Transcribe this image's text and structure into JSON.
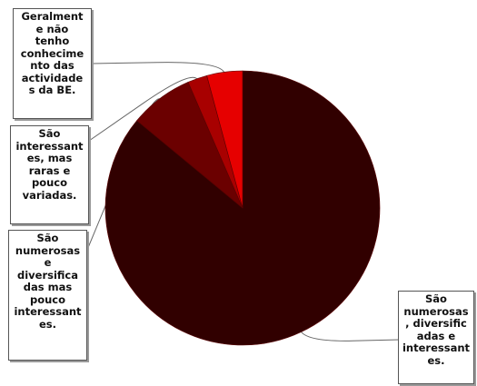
{
  "chart_data": {
    "type": "pie",
    "title": "",
    "slices": [
      {
        "label": "São numerosas, diversificadas e interessantes.",
        "display": "São\nnumerosas\n, diversific\nadas e\ninteressant\nes.",
        "value": 86,
        "color": "#310000"
      },
      {
        "label": "São numerosas e diversificadas mas pouco interessantes.",
        "display": "São\nnumerosas\ne\ndiversifica\ndas mas\npouco\ninteressant\nes.",
        "value": 7.5,
        "color": "#6b0000"
      },
      {
        "label": "São interessantes, mas raras e pouco variadas.",
        "display": "São\ninteressant\nes, mas\nraras e\npouco\nvariadas.",
        "value": 2.3,
        "color": "#a80000"
      },
      {
        "label": "Geralmente não tenho conhecimento das actividades da BE.",
        "display": "Geralment\ne não\ntenho\nconhecime\nnto das\nactividade\ns da BE.",
        "value": 4.2,
        "color": "#e60000"
      }
    ]
  }
}
